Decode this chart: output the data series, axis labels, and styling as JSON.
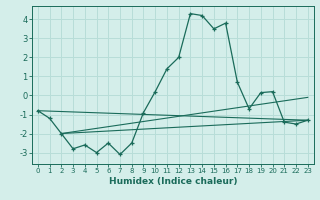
{
  "title": "",
  "xlabel": "Humidex (Indice chaleur)",
  "ylabel": "",
  "background_color": "#d4eeea",
  "line_color": "#1a6b5a",
  "grid_color": "#b8ddd8",
  "xlim": [
    -0.5,
    23.5
  ],
  "ylim": [
    -3.6,
    4.7
  ],
  "xticks": [
    0,
    1,
    2,
    3,
    4,
    5,
    6,
    7,
    8,
    9,
    10,
    11,
    12,
    13,
    14,
    15,
    16,
    17,
    18,
    19,
    20,
    21,
    22,
    23
  ],
  "yticks": [
    -3,
    -2,
    -1,
    0,
    1,
    2,
    3,
    4
  ],
  "main_series": [
    [
      0,
      -0.8
    ],
    [
      1,
      -1.2
    ],
    [
      2,
      -2.0
    ],
    [
      3,
      -2.8
    ],
    [
      4,
      -2.6
    ],
    [
      5,
      -3.0
    ],
    [
      6,
      -2.5
    ],
    [
      7,
      -3.1
    ],
    [
      8,
      -2.5
    ],
    [
      9,
      -0.9
    ],
    [
      10,
      0.2
    ],
    [
      11,
      1.4
    ],
    [
      12,
      2.0
    ],
    [
      13,
      4.3
    ],
    [
      14,
      4.2
    ],
    [
      15,
      3.5
    ],
    [
      16,
      3.8
    ],
    [
      17,
      0.7
    ],
    [
      18,
      -0.7
    ],
    [
      19,
      0.15
    ],
    [
      20,
      0.2
    ],
    [
      21,
      -1.4
    ],
    [
      22,
      -1.5
    ],
    [
      23,
      -1.3
    ]
  ],
  "line1": [
    [
      0,
      -0.8
    ],
    [
      23,
      -1.3
    ]
  ],
  "line2": [
    [
      2,
      -2.0
    ],
    [
      23,
      -1.3
    ]
  ],
  "line3": [
    [
      2,
      -2.0
    ],
    [
      23,
      -0.1
    ]
  ]
}
